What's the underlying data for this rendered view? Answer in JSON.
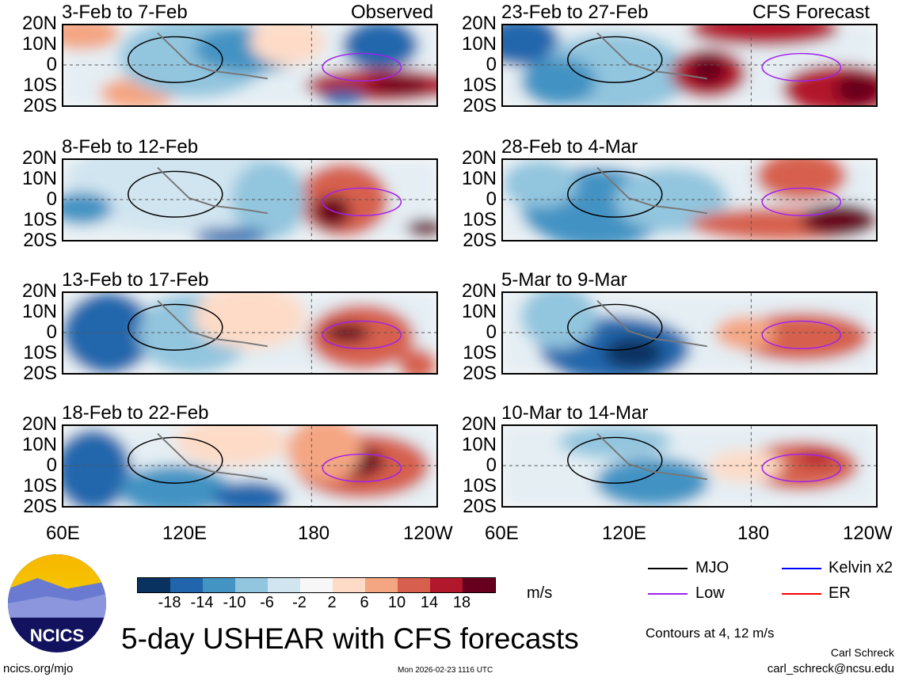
{
  "header": {
    "observed_label": "Observed",
    "forecast_label": "CFS Forecast"
  },
  "panels_left": [
    {
      "title": "3-Feb to 7-Feb"
    },
    {
      "title": "8-Feb to 12-Feb"
    },
    {
      "title": "13-Feb to 17-Feb"
    },
    {
      "title": "18-Feb to 22-Feb"
    }
  ],
  "panels_right": [
    {
      "title": "23-Feb to 27-Feb"
    },
    {
      "title": "28-Feb to 4-Mar"
    },
    {
      "title": "5-Mar to 9-Mar"
    },
    {
      "title": "10-Mar to 14-Mar"
    }
  ],
  "lat_labels": [
    "20N",
    "10N",
    "0",
    "10S",
    "20S"
  ],
  "lon_labels": [
    "60E",
    "120E",
    "180",
    "120W"
  ],
  "colorbar": {
    "colors": [
      "#0a3261",
      "#2166ac",
      "#4393c3",
      "#92c5de",
      "#d1e5f0",
      "#f7f7f7",
      "#fddbc7",
      "#f4a582",
      "#d6604d",
      "#b2182b",
      "#67001f"
    ],
    "ticks": [
      "-18",
      "-14",
      "-10",
      "-6",
      "-2",
      "2",
      "6",
      "10",
      "14",
      "18"
    ],
    "units": "m/s"
  },
  "legend": [
    {
      "label": "MJO",
      "color": "#000000"
    },
    {
      "label": "Kelvin x2",
      "color": "#0000ff"
    },
    {
      "label": "Low",
      "color": "#a020f0"
    },
    {
      "label": "ER",
      "color": "#ff0000"
    }
  ],
  "contours_note": "Contours at 4, 12 m/s",
  "title": "5-day USHEAR with CFS forecasts",
  "logo_text": "NCICS",
  "website": "ncics.org/mjo",
  "timestamp": "Mon 2026-02-23 1116 UTC",
  "author": "Carl Schreck",
  "email": "carl_schreck@ncsu.edu"
}
